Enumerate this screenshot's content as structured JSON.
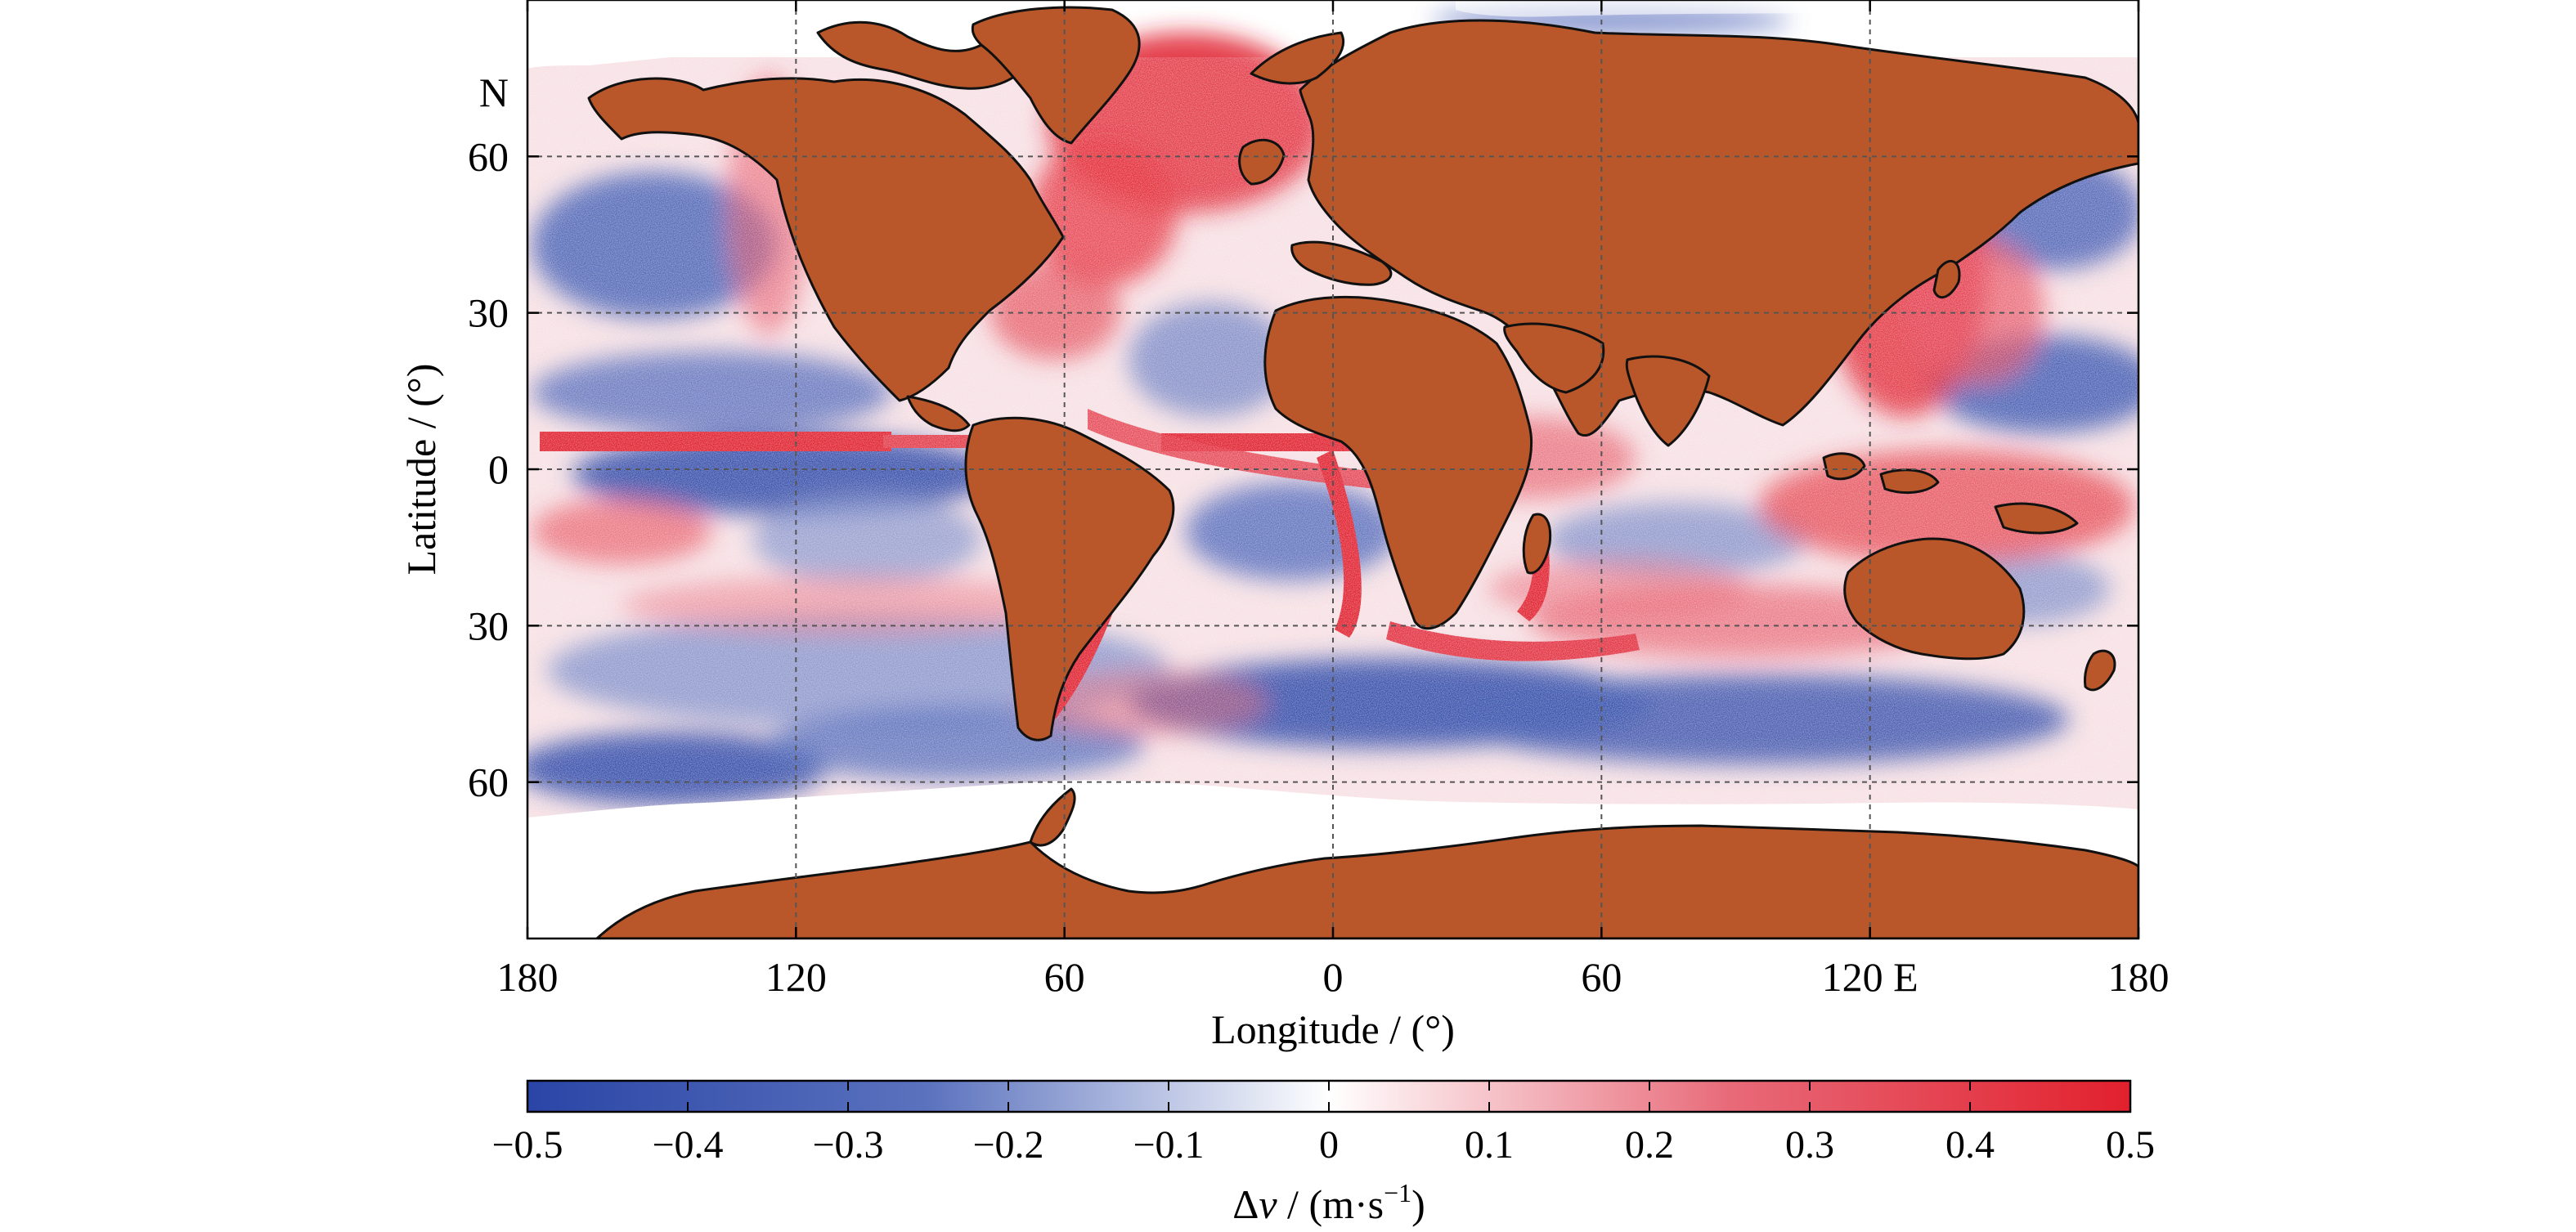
{
  "map": {
    "x_axis": {
      "label": "Longitude / (°)",
      "ticks": [
        {
          "lon": -180,
          "label": "180"
        },
        {
          "lon": -120,
          "label": "120"
        },
        {
          "lon": -60,
          "label": "60"
        },
        {
          "lon": 0,
          "label": "0"
        },
        {
          "lon": 60,
          "label": "60"
        },
        {
          "lon": 120,
          "label": "120 E"
        },
        {
          "lon": 180,
          "label": "180"
        }
      ],
      "range": [
        -180,
        180
      ]
    },
    "y_axis": {
      "label": "Latitude / (°)",
      "hemisphere_label": "N",
      "ticks": [
        {
          "lat": 60,
          "label": "60"
        },
        {
          "lat": 30,
          "label": "30"
        },
        {
          "lat": 0,
          "label": "0"
        },
        {
          "lat": -30,
          "label": "30"
        },
        {
          "lat": -60,
          "label": "60"
        }
      ],
      "range": [
        -90,
        90
      ],
      "gridlines": "dashed"
    },
    "colors": {
      "land": "#b9572a",
      "coast": "#111111",
      "negative": "#2e4aa8",
      "positive": "#e0202e",
      "neutral": "#ffffff"
    }
  },
  "colorbar": {
    "min": -0.5,
    "max": 0.5,
    "ticks": [
      {
        "value": -0.5,
        "label": "−0.5"
      },
      {
        "value": -0.4,
        "label": "−0.4"
      },
      {
        "value": -0.3,
        "label": "−0.3"
      },
      {
        "value": -0.2,
        "label": "−0.2"
      },
      {
        "value": -0.1,
        "label": "−0.1"
      },
      {
        "value": 0,
        "label": "0"
      },
      {
        "value": 0.1,
        "label": "0.1"
      },
      {
        "value": 0.2,
        "label": "0.2"
      },
      {
        "value": 0.3,
        "label": "0.3"
      },
      {
        "value": 0.4,
        "label": "0.4"
      },
      {
        "value": 0.5,
        "label": "0.5"
      }
    ],
    "label_symbol": "Δ",
    "label_var": "v",
    "label_unit_open": " / (m·s",
    "label_unit_exp": "−1",
    "label_unit_close": ")"
  }
}
